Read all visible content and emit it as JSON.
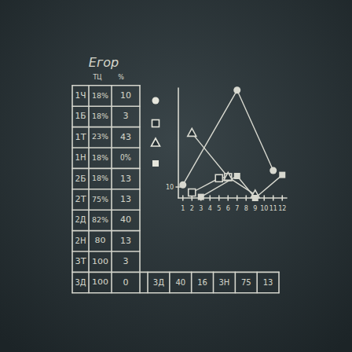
{
  "table": {
    "title": "Егор",
    "columns": [
      "ТЦ",
      "%"
    ],
    "rows": [
      [
        "1Ч",
        "18%",
        "10"
      ],
      [
        "1Б",
        "18%",
        "3"
      ],
      [
        "1Т",
        "23%",
        "43"
      ],
      [
        "1Н",
        "18%",
        "0%"
      ],
      [
        "2Б",
        "18%",
        "13"
      ],
      [
        "2Т",
        "75%",
        "13"
      ],
      [
        "2Д",
        "82%",
        "40"
      ],
      [
        "2Н",
        "80",
        "13"
      ],
      [
        "3Т",
        "100",
        "3"
      ],
      [
        "3Д",
        "100",
        "0"
      ]
    ],
    "extra_row": [
      "3Д",
      "40",
      "16",
      "3Н",
      "75",
      "13"
    ]
  },
  "chart_data": {
    "type": "line",
    "xlim": [
      0.5,
      12.5
    ],
    "xticks": [
      1,
      2,
      3,
      4,
      5,
      6,
      7,
      8,
      9,
      10,
      11,
      12
    ],
    "ylim": [
      0,
      100
    ],
    "yticks": [
      10
    ],
    "grid": false,
    "series": [
      {
        "marker": "circle",
        "line_style": "solid",
        "x": [
          1,
          7,
          11
        ],
        "values": [
          12,
          98,
          25
        ]
      },
      {
        "marker": "square",
        "line_style": "solid",
        "x": [
          2,
          5,
          6
        ],
        "values": [
          5,
          18,
          19
        ]
      },
      {
        "marker": "triangle",
        "line_style": "solid",
        "x": [
          2,
          6,
          9
        ],
        "values": [
          59,
          19,
          3
        ]
      },
      {
        "marker": "filled-square",
        "line_style": "solid",
        "x": [
          3,
          7,
          9,
          12
        ],
        "values": [
          1,
          20,
          0,
          21
        ]
      }
    ]
  }
}
